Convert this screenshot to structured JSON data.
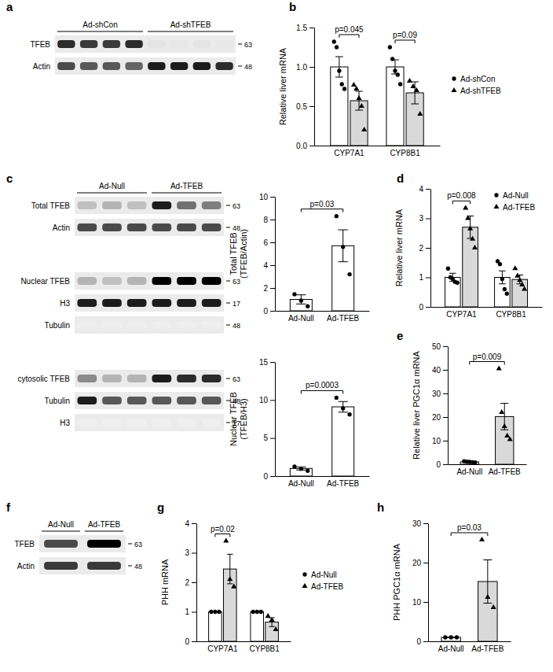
{
  "chart_data": [
    {
      "type": "bar",
      "panel": "b",
      "ylabel": "Relative liver mRNA",
      "categories": [
        "CYP7A1",
        "CYP8B1"
      ],
      "ylim": [
        0,
        1.5
      ],
      "yticks": [
        {
          "value": 0,
          "label": "0.0"
        },
        {
          "value": 0.5,
          "label": "0.5"
        },
        {
          "value": 1,
          "label": "1.0"
        },
        {
          "value": 1.5,
          "label": "1.5"
        }
      ],
      "legend": "right",
      "series": [
        {
          "name": "Ad-shCon",
          "color": "#ffffff",
          "marker": "circle",
          "values": [
            1.0,
            1.0
          ],
          "errors": [
            0.13,
            0.09
          ],
          "points": [
            [
              1.32,
              1.25,
              0.95,
              0.78,
              0.72
            ],
            [
              1.25,
              1.1,
              0.95,
              0.9,
              0.78
            ]
          ]
        },
        {
          "name": "Ad-shTFEB",
          "color": "#d9d9d9",
          "marker": "triangle",
          "values": [
            0.57,
            0.67
          ],
          "errors": [
            0.12,
            0.14
          ],
          "points": [
            [
              0.77,
              0.72,
              0.6,
              0.5,
              0.2
            ],
            [
              0.82,
              0.75,
              0.7,
              0.4
            ]
          ]
        }
      ],
      "annotations": [
        {
          "text": "p=0.045",
          "categories": [
            0
          ]
        },
        {
          "text": "p=0.09",
          "categories": [
            1
          ]
        }
      ]
    },
    {
      "type": "bar",
      "ylabel": [
        "Total TFEB",
        "(TFEB/Actin)"
      ],
      "categories": [
        "Ad-Null",
        "Ad-TFEB"
      ],
      "ylim": [
        0,
        10
      ],
      "yticks": [
        0,
        2,
        4,
        6,
        8,
        10
      ],
      "series": [
        {
          "color": "#ffffff",
          "marker": "circle",
          "values": [
            1.0,
            5.7
          ],
          "errors": [
            0.4,
            1.4
          ],
          "points": [
            [
              1.45,
              0.9,
              0.4
            ],
            [
              8.3,
              5.6,
              3.2
            ]
          ]
        }
      ],
      "annotations": [
        {
          "text": "p=0.03",
          "categories": [
            0,
            1
          ]
        }
      ]
    },
    {
      "type": "bar",
      "ylabel": [
        "Nuclear TFEB",
        "(TFEB/H3)"
      ],
      "categories": [
        "Ad-Null",
        "Ad-TFEB"
      ],
      "ylim": [
        0,
        15
      ],
      "yticks": [
        0,
        5,
        10,
        15
      ],
      "series": [
        {
          "color": "#ffffff",
          "marker": "circle",
          "values": [
            1.0,
            9.1
          ],
          "errors": [
            0.2,
            0.7
          ],
          "points": [
            [
              1.25,
              0.95,
              0.7
            ],
            [
              10.3,
              8.9,
              8.1
            ]
          ]
        }
      ],
      "annotations": [
        {
          "text": "p=0.0003",
          "categories": [
            0,
            1
          ]
        }
      ]
    },
    {
      "type": "bar",
      "panel": "d",
      "ylabel": "Relative liver mRNA",
      "categories": [
        "CYP7A1",
        "CYP8B1"
      ],
      "ylim": [
        0,
        4
      ],
      "yticks": [
        0,
        1,
        2,
        3,
        4
      ],
      "legend": "top-right",
      "series": [
        {
          "name": "Ad-Null",
          "color": "#ffffff",
          "marker": "circle",
          "values": [
            1.0,
            1.0
          ],
          "errors": [
            0.14,
            0.22
          ],
          "points": [
            [
              1.3,
              1.0,
              0.95,
              0.85,
              0.82
            ],
            [
              1.55,
              1.45,
              0.95,
              0.6,
              0.45
            ]
          ]
        },
        {
          "name": "Ad-TFEB",
          "color": "#d9d9d9",
          "marker": "triangle",
          "values": [
            2.7,
            0.93
          ],
          "errors": [
            0.38,
            0.15
          ],
          "points": [
            [
              3.35,
              3.0,
              2.65,
              2.3,
              2.0
            ],
            [
              1.3,
              1.05,
              0.9,
              0.75,
              0.6
            ]
          ]
        }
      ],
      "annotations": [
        {
          "text": "p=0.008",
          "categories": [
            0
          ]
        }
      ]
    },
    {
      "type": "bar",
      "panel": "e",
      "ylabel": "Relative liver PGC1α mRNA",
      "categories": [
        "Ad-Null",
        "Ad-TFEB"
      ],
      "ylim": [
        0,
        50
      ],
      "yticks": [
        0,
        10,
        20,
        30,
        40,
        50
      ],
      "series": [
        {
          "color": "#ffffff",
          "marker": "circle",
          "values": [
            1.0,
            null
          ],
          "errors": [
            0.2,
            null
          ],
          "points": [
            [
              1.3,
              1.1,
              1.0,
              0.9,
              0.8
            ],
            []
          ]
        },
        {
          "color": "#d9d9d9",
          "marker": "triangle",
          "values": [
            null,
            20.2
          ],
          "errors": [
            null,
            5.6
          ],
          "points": [
            [],
            [
              40.5,
              22,
              16,
              12,
              10.5
            ]
          ]
        }
      ],
      "annotations": [
        {
          "text": "p=0.009",
          "categories": [
            0,
            1
          ]
        }
      ]
    },
    {
      "type": "bar",
      "panel": "g",
      "ylabel": "PHH mRNA",
      "categories": [
        "CYP7A1",
        "CYP8B1"
      ],
      "ylim": [
        0,
        4
      ],
      "yticks": [
        0,
        1,
        2,
        3,
        4
      ],
      "legend": "right",
      "series": [
        {
          "name": "Ad-Null",
          "color": "#ffffff",
          "marker": "circle",
          "values": [
            1.0,
            1.0
          ],
          "errors": [
            0,
            0
          ],
          "points": [
            [
              1,
              1,
              1
            ],
            [
              1,
              1,
              1
            ]
          ]
        },
        {
          "name": "Ad-TFEB",
          "color": "#d9d9d9",
          "marker": "triangle",
          "values": [
            2.45,
            0.65
          ],
          "errors": [
            0.5,
            0.15
          ],
          "points": [
            [
              3.4,
              2.1,
              1.85
            ],
            [
              0.85,
              0.72,
              0.4
            ]
          ]
        }
      ],
      "annotations": [
        {
          "text": "p=0.02",
          "categories": [
            0
          ]
        }
      ]
    },
    {
      "type": "bar",
      "panel": "h",
      "ylabel": "PHH PGC1α mRNA",
      "categories": [
        "Ad-Null",
        "Ad-TFEB"
      ],
      "ylim": [
        0,
        30
      ],
      "yticks": [
        0,
        10,
        20,
        30
      ],
      "series": [
        {
          "color": "#ffffff",
          "marker": "circle",
          "values": [
            1.0,
            null
          ],
          "errors": [
            0,
            null
          ],
          "points": [
            [
              1,
              1,
              1
            ],
            []
          ]
        },
        {
          "color": "#d9d9d9",
          "marker": "triangle",
          "values": [
            null,
            15.2
          ],
          "errors": [
            null,
            5.5
          ],
          "points": [
            [],
            [
              25.8,
              11.2,
              8.6
            ]
          ]
        }
      ],
      "annotations": [
        {
          "text": "p=0.03",
          "categories": [
            0,
            1
          ]
        }
      ]
    }
  ],
  "blots": [
    {
      "panel": "a",
      "groups": [
        {
          "text": "Ad-shCon",
          "lanes": 4
        },
        {
          "text": "Ad-shTFEB",
          "lanes": 4
        }
      ],
      "strips": [
        [
          {
            "name": "TFEB",
            "mw": 63,
            "bands": [
              0.85,
              0.8,
              0.8,
              0.85,
              0.12,
              0.1,
              0.12,
              0.1
            ]
          },
          {
            "name": "Actin",
            "mw": 48,
            "bands": [
              0.75,
              0.7,
              0.7,
              0.65,
              0.9,
              0.9,
              0.9,
              0.85
            ]
          }
        ]
      ]
    },
    {
      "panel": "c",
      "groups": [
        {
          "text": "Ad-Null",
          "lanes": 3
        },
        {
          "text": "Ad-TFEB",
          "lanes": 3
        }
      ],
      "strips": [
        [
          {
            "name": "Total TFEB",
            "mw": 63,
            "bands": [
              0.3,
              0.35,
              0.3,
              0.9,
              0.6,
              0.55
            ]
          },
          {
            "name": "Actin",
            "mw": 48,
            "bands": [
              0.75,
              0.75,
              0.75,
              0.75,
              0.75,
              0.75
            ]
          }
        ],
        [
          {
            "name": "Nuclear TFEB",
            "mw": 63,
            "bands": [
              0.35,
              0.3,
              0.35,
              1.0,
              1.0,
              1.0
            ]
          },
          {
            "name": "H3",
            "mw": 17,
            "bands": [
              0.9,
              0.9,
              0.9,
              0.9,
              0.9,
              0.9
            ]
          },
          {
            "name": "Tubulin",
            "mw": 48,
            "bands": [
              0.05,
              0.05,
              0.05,
              0.05,
              0.05,
              0.05
            ]
          }
        ],
        [
          {
            "name": "cytosolic TFEB",
            "mw": 63,
            "bands": [
              0.5,
              0.35,
              0.35,
              0.9,
              0.85,
              0.85
            ]
          },
          {
            "name": "Tubulin",
            "mw": 48,
            "bands": [
              0.9,
              0.7,
              0.7,
              0.7,
              0.7,
              0.7
            ]
          },
          {
            "name": "H3",
            "mw": 17,
            "bands": [
              0.05,
              0.05,
              0.05,
              0.05,
              0.05,
              0.05
            ]
          }
        ]
      ]
    },
    {
      "panel": "f",
      "groups": [
        {
          "text": "Ad-Null",
          "lanes": 1
        },
        {
          "text": "Ad-TFEB",
          "lanes": 1
        }
      ],
      "strips": [
        [
          {
            "name": "TFEB",
            "mw": 63,
            "bands": [
              0.75,
              1.0
            ]
          },
          {
            "name": "Actin",
            "mw": 48,
            "bands": [
              0.8,
              0.8
            ]
          }
        ]
      ]
    }
  ]
}
